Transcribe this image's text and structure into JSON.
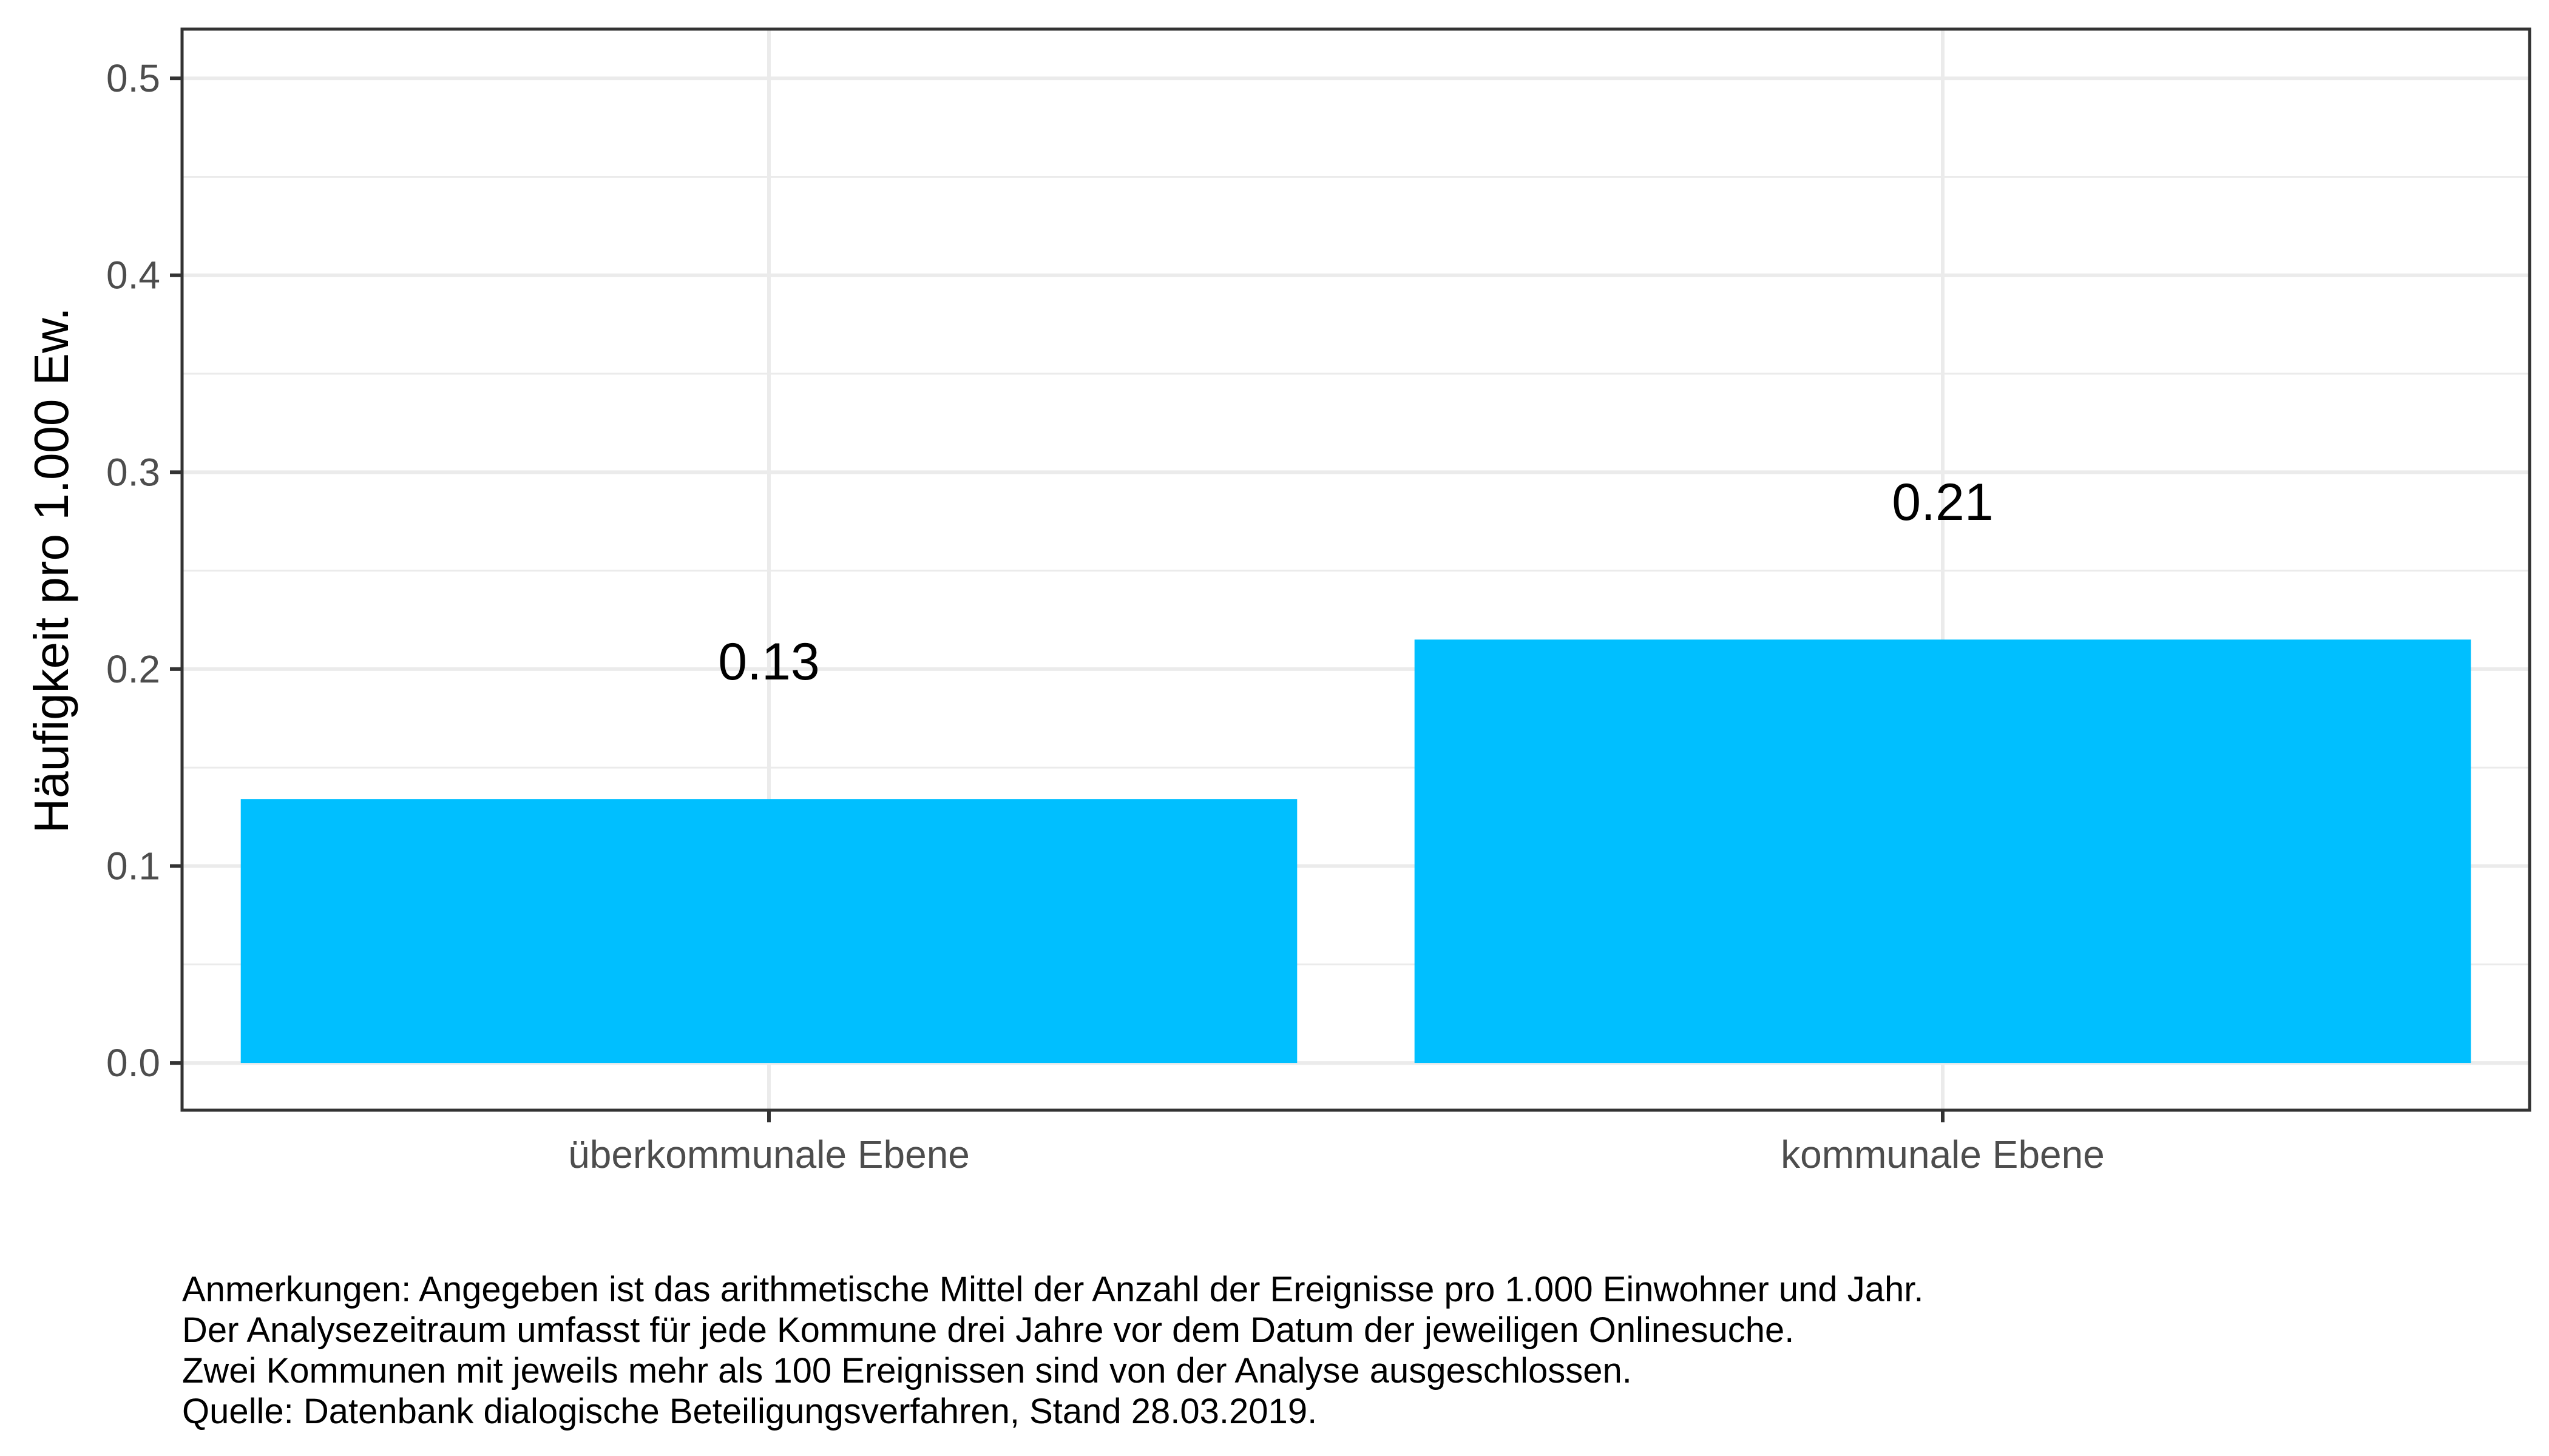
{
  "chart_data": {
    "type": "bar",
    "categories": [
      "überkommunale Ebene",
      "kommunale Ebene"
    ],
    "values": [
      0.134,
      0.215
    ],
    "data_labels": [
      "0.13",
      "0.21"
    ],
    "title": "",
    "xlabel": "",
    "ylabel": "Häufigkeit pro 1.000 Ew.",
    "ylim": [
      -0.024,
      0.525
    ],
    "yticks": [
      0.0,
      0.1,
      0.2,
      0.3,
      0.4,
      0.5
    ],
    "ytick_labels": [
      "0.0",
      "0.1",
      "0.2",
      "0.3",
      "0.4",
      "0.5"
    ],
    "grid": true,
    "legend": "none",
    "bar_color": "#00bfff",
    "panel_border_color": "#333333",
    "grid_color": "#ebebeb"
  },
  "caption": {
    "lines": [
      "Anmerkungen: Angegeben ist das arithmetische Mittel der Anzahl der Ereignisse pro 1.000 Einwohner und Jahr.",
      "Der Analysezeitraum umfasst für jede Kommune drei Jahre vor dem Datum der jeweiligen Onlinesuche.",
      "Zwei Kommunen mit jeweils mehr als 100 Ereignissen sind von der Analyse ausgeschlossen.",
      "Quelle: Datenbank dialogische Beteiligungsverfahren, Stand 28.03.2019."
    ]
  }
}
